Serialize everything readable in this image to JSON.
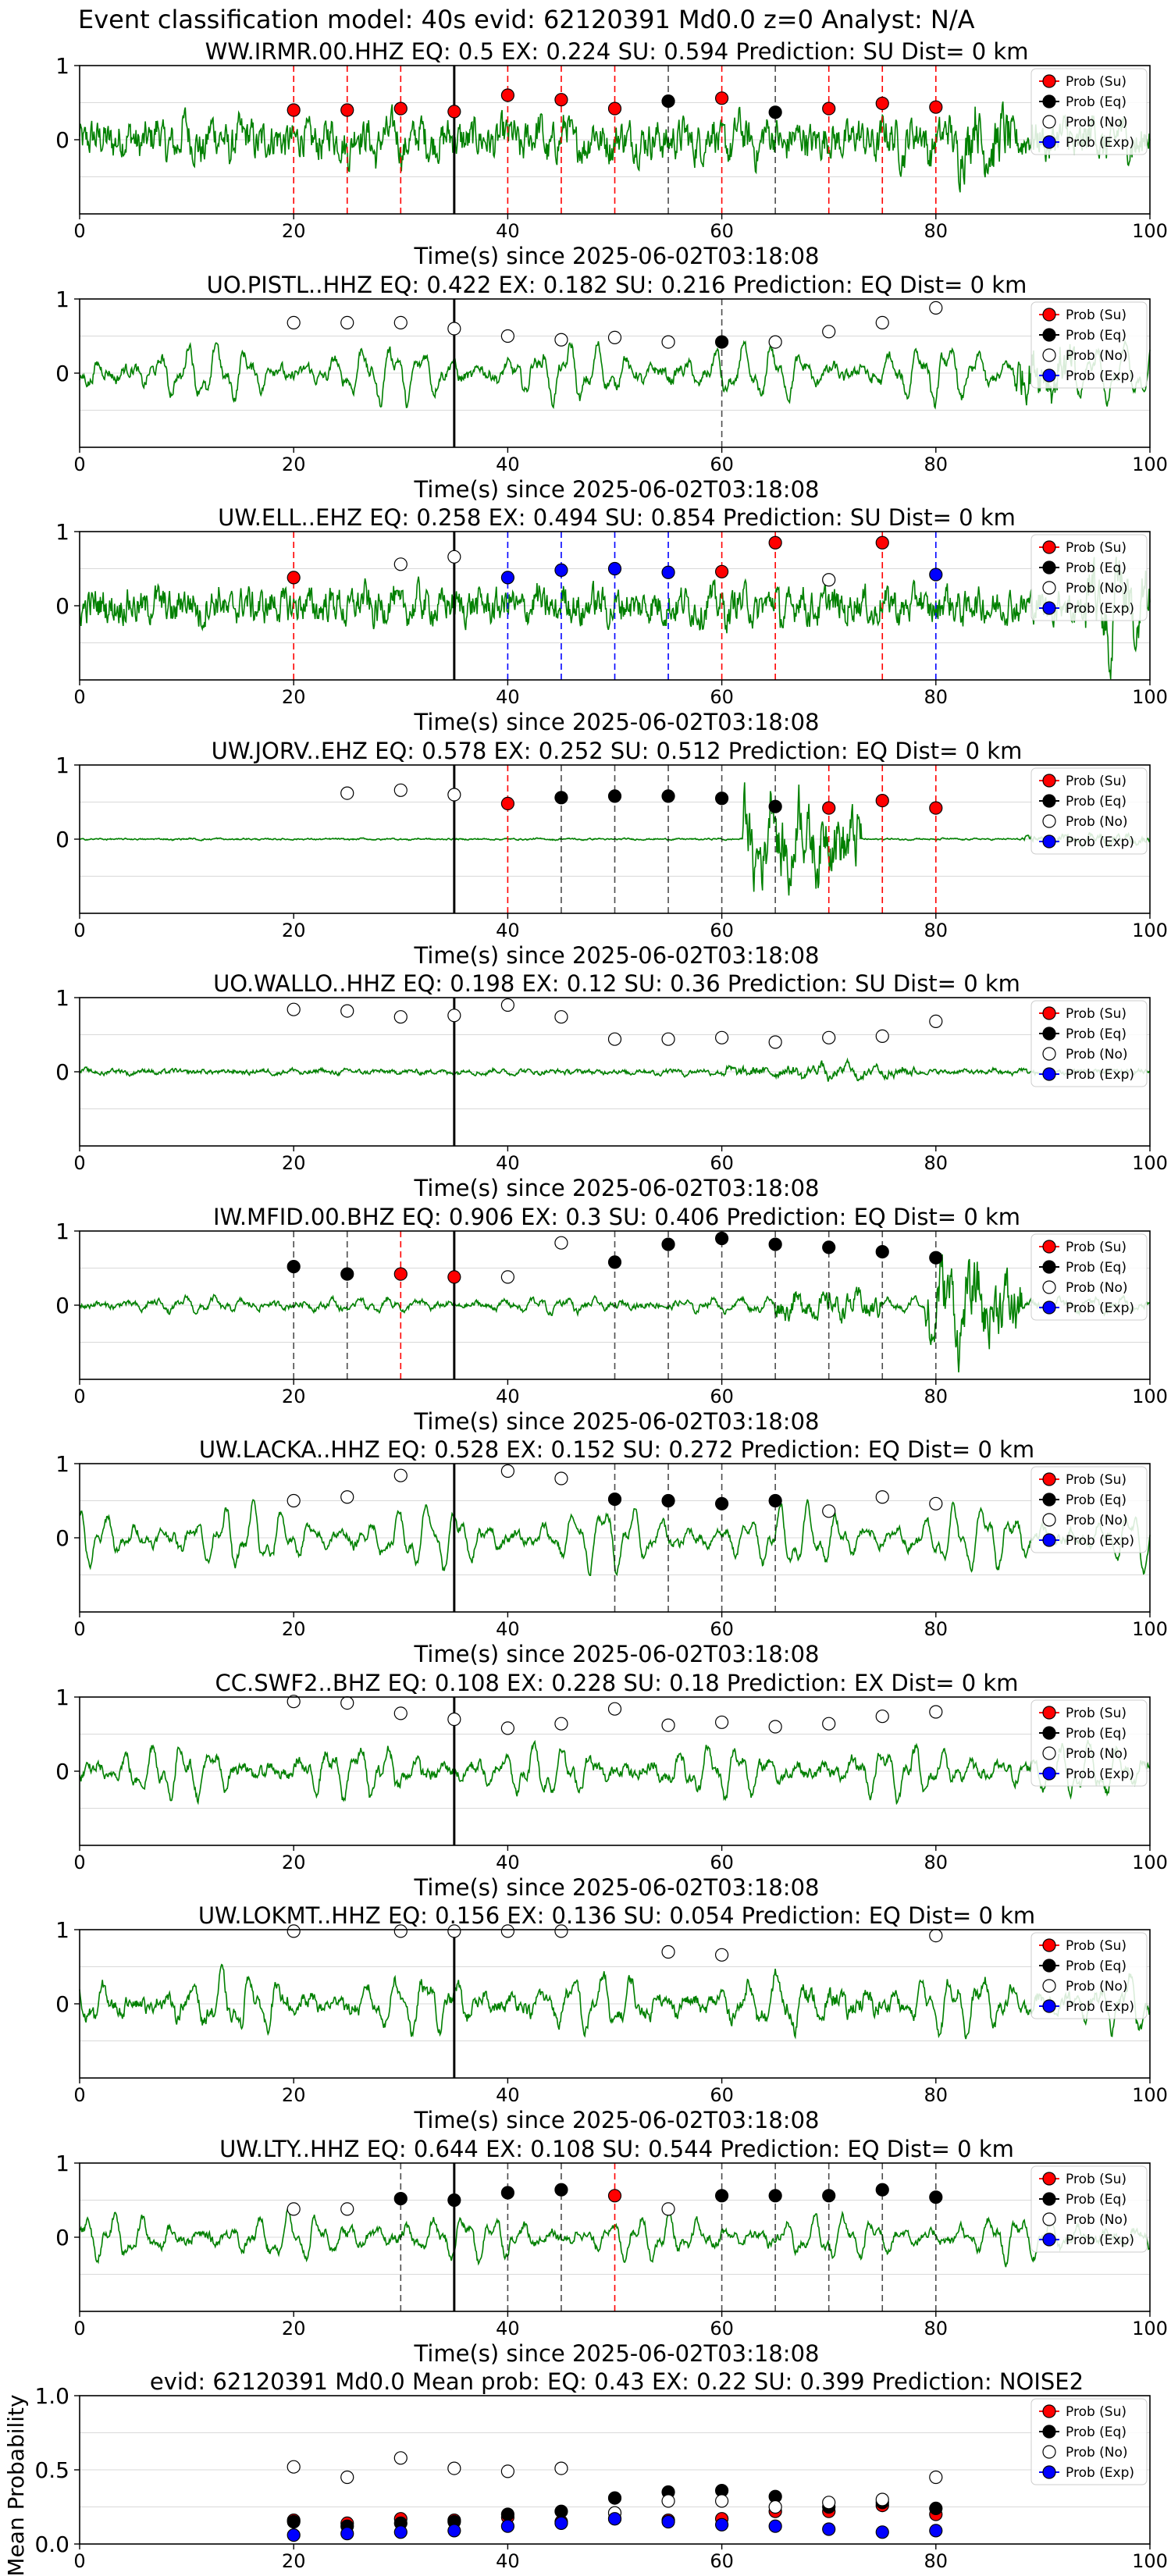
{
  "figure_title": "Event classification model: 40s evid: 62120391 Md0.0 z=0 Analyst: N/A",
  "legend": {
    "su": "Prob (Su)",
    "eq": "Prob (Eq)",
    "no": "Prob (No)",
    "exp": "Prob (Exp)"
  },
  "colors": {
    "waveform": "#008000",
    "su": "#ff0000",
    "eq": "#000000",
    "no": "#ffffff",
    "exp": "#0000ff",
    "grid": "#d9d9d9"
  },
  "chart_data": [
    {
      "type": "line",
      "title": "WW.IRMR.00.HHZ   EQ: 0.5   EX: 0.224   SU: 0.594   Prediction: SU    Dist= 0 km",
      "xlabel": "Time(s) since 2025-06-02T03:18:08",
      "xlim": [
        0,
        100
      ],
      "ylim": [
        -1,
        1
      ],
      "xticks": [
        "0",
        "20",
        "40",
        "60",
        "80",
        "100"
      ],
      "yticks": [
        "1",
        "0"
      ],
      "signal": {
        "amp": 0.22,
        "noise": 0.5,
        "bursts": [
          [
            82,
            87,
            0.95
          ]
        ]
      },
      "windows": [
        {
          "t": 20,
          "class": "su",
          "p": 0.4
        },
        {
          "t": 25,
          "class": "su",
          "p": 0.4
        },
        {
          "t": 30,
          "class": "su",
          "p": 0.42
        },
        {
          "t": 35,
          "class": "su",
          "p": 0.38
        },
        {
          "t": 40,
          "class": "su",
          "p": 0.6
        },
        {
          "t": 45,
          "class": "su",
          "p": 0.54
        },
        {
          "t": 50,
          "class": "su",
          "p": 0.42
        },
        {
          "t": 55,
          "class": "eq",
          "p": 0.52
        },
        {
          "t": 60,
          "class": "su",
          "p": 0.56
        },
        {
          "t": 65,
          "class": "eq",
          "p": 0.37
        },
        {
          "t": 70,
          "class": "su",
          "p": 0.42
        },
        {
          "t": 75,
          "class": "su",
          "p": 0.49
        },
        {
          "t": 80,
          "class": "su",
          "p": 0.44
        }
      ]
    },
    {
      "type": "line",
      "title": "UO.PISTL..HHZ   EQ: 0.422  EX: 0.182  SU: 0.216   Prediction: EQ    Dist= 0 km",
      "xlabel": "Time(s) since 2025-06-02T03:18:08",
      "xlim": [
        0,
        100
      ],
      "ylim": [
        -1,
        1
      ],
      "xticks": [
        "0",
        "20",
        "40",
        "60",
        "80",
        "100"
      ],
      "yticks": [
        "1",
        "0"
      ],
      "signal": {
        "amp": 0.45,
        "noise": 0.15,
        "bursts": [
          [
            87,
            93,
            0.7
          ]
        ]
      },
      "windows": [
        {
          "t": 20,
          "class": "no",
          "p": 0.68
        },
        {
          "t": 25,
          "class": "no",
          "p": 0.68
        },
        {
          "t": 30,
          "class": "no",
          "p": 0.68
        },
        {
          "t": 35,
          "class": "no",
          "p": 0.6
        },
        {
          "t": 40,
          "class": "no",
          "p": 0.5
        },
        {
          "t": 45,
          "class": "no",
          "p": 0.45
        },
        {
          "t": 50,
          "class": "no",
          "p": 0.48
        },
        {
          "t": 55,
          "class": "no",
          "p": 0.42
        },
        {
          "t": 60,
          "class": "eq",
          "p": 0.42
        },
        {
          "t": 65,
          "class": "no",
          "p": 0.42
        },
        {
          "t": 70,
          "class": "no",
          "p": 0.56
        },
        {
          "t": 75,
          "class": "no",
          "p": 0.68
        },
        {
          "t": 80,
          "class": "no",
          "p": 0.88
        }
      ]
    },
    {
      "type": "line",
      "title": "UW.ELL..EHZ   EQ: 0.258  EX: 0.494  SU: 0.854   Prediction: SU    Dist= 0 km",
      "xlabel": "Time(s) since 2025-06-02T03:18:08",
      "xlim": [
        0,
        100
      ],
      "ylim": [
        -1,
        1
      ],
      "xticks": [
        "0",
        "20",
        "40",
        "60",
        "80",
        "100"
      ],
      "yticks": [
        "1",
        "0"
      ],
      "signal": {
        "amp": 0.15,
        "noise": 0.45,
        "bursts": [
          [
            65,
            75,
            0.5
          ],
          [
            94,
            100,
            0.9
          ]
        ]
      },
      "windows": [
        {
          "t": 20,
          "class": "su",
          "p": 0.38
        },
        {
          "t": 30,
          "class": "no",
          "p": 0.56
        },
        {
          "t": 35,
          "class": "no",
          "p": 0.66
        },
        {
          "t": 40,
          "class": "exp",
          "p": 0.38
        },
        {
          "t": 45,
          "class": "exp",
          "p": 0.48
        },
        {
          "t": 50,
          "class": "exp",
          "p": 0.5
        },
        {
          "t": 55,
          "class": "exp",
          "p": 0.45
        },
        {
          "t": 60,
          "class": "su",
          "p": 0.46
        },
        {
          "t": 65,
          "class": "su",
          "p": 0.85
        },
        {
          "t": 70,
          "class": "no",
          "p": 0.35
        },
        {
          "t": 75,
          "class": "su",
          "p": 0.85
        },
        {
          "t": 80,
          "class": "exp",
          "p": 0.42
        }
      ]
    },
    {
      "type": "line",
      "title": "UW.JORV..EHZ   EQ: 0.578  EX: 0.252  SU: 0.512   Prediction: EQ    Dist= 0 km",
      "xlabel": "Time(s) since 2025-06-02T03:18:08",
      "xlim": [
        0,
        100
      ],
      "ylim": [
        -1,
        1
      ],
      "xticks": [
        "0",
        "20",
        "40",
        "60",
        "80",
        "100"
      ],
      "yticks": [
        "1",
        "0"
      ],
      "signal": {
        "amp": 0.01,
        "noise": 0.02,
        "bursts": [
          [
            62,
            73,
            1.0
          ],
          [
            88,
            100,
            0.1
          ]
        ]
      },
      "windows": [
        {
          "t": 25,
          "class": "no",
          "p": 0.62
        },
        {
          "t": 30,
          "class": "no",
          "p": 0.66
        },
        {
          "t": 35,
          "class": "no",
          "p": 0.6
        },
        {
          "t": 40,
          "class": "su",
          "p": 0.48
        },
        {
          "t": 45,
          "class": "eq",
          "p": 0.56
        },
        {
          "t": 50,
          "class": "eq",
          "p": 0.58
        },
        {
          "t": 55,
          "class": "eq",
          "p": 0.58
        },
        {
          "t": 60,
          "class": "eq",
          "p": 0.55
        },
        {
          "t": 65,
          "class": "eq",
          "p": 0.44
        },
        {
          "t": 70,
          "class": "su",
          "p": 0.42
        },
        {
          "t": 75,
          "class": "su",
          "p": 0.52
        },
        {
          "t": 80,
          "class": "su",
          "p": 0.42
        }
      ]
    },
    {
      "type": "line",
      "title": "UO.WALLO..HHZ   EQ: 0.198  EX: 0.12  SU: 0.36   Prediction: SU    Dist= 0 km",
      "xlabel": "Time(s) since 2025-06-02T03:18:08",
      "xlim": [
        0,
        100
      ],
      "ylim": [
        -1,
        1
      ],
      "xticks": [
        "0",
        "20",
        "40",
        "60",
        "80",
        "100"
      ],
      "yticks": [
        "1",
        "0"
      ],
      "signal": {
        "amp": 0.04,
        "noise": 0.06,
        "bursts": [
          [
            60,
            78,
            0.15
          ]
        ]
      },
      "windows": [
        {
          "t": 20,
          "class": "no",
          "p": 0.84
        },
        {
          "t": 25,
          "class": "no",
          "p": 0.82
        },
        {
          "t": 30,
          "class": "no",
          "p": 0.74
        },
        {
          "t": 35,
          "class": "no",
          "p": 0.76
        },
        {
          "t": 40,
          "class": "no",
          "p": 0.9
        },
        {
          "t": 45,
          "class": "no",
          "p": 0.74
        },
        {
          "t": 50,
          "class": "no",
          "p": 0.44
        },
        {
          "t": 55,
          "class": "no",
          "p": 0.44
        },
        {
          "t": 60,
          "class": "no",
          "p": 0.46
        },
        {
          "t": 65,
          "class": "no",
          "p": 0.4
        },
        {
          "t": 70,
          "class": "no",
          "p": 0.46
        },
        {
          "t": 75,
          "class": "no",
          "p": 0.48
        },
        {
          "t": 80,
          "class": "no",
          "p": 0.68
        }
      ]
    },
    {
      "type": "line",
      "title": "IW.MFID.00.BHZ   EQ: 0.906  EX: 0.3  SU: 0.406   Prediction: EQ    Dist= 0 km",
      "xlabel": "Time(s) since 2025-06-02T03:18:08",
      "xlim": [
        0,
        100
      ],
      "ylim": [
        -1,
        1
      ],
      "xticks": [
        "0",
        "20",
        "40",
        "60",
        "80",
        "100"
      ],
      "yticks": [
        "1",
        "0"
      ],
      "signal": {
        "amp": 0.12,
        "noise": 0.08,
        "bursts": [
          [
            65,
            75,
            0.35
          ],
          [
            79,
            88,
            0.95
          ]
        ]
      },
      "windows": [
        {
          "t": 20,
          "class": "eq",
          "p": 0.52
        },
        {
          "t": 25,
          "class": "eq",
          "p": 0.42
        },
        {
          "t": 30,
          "class": "su",
          "p": 0.42
        },
        {
          "t": 35,
          "class": "su",
          "p": 0.38
        },
        {
          "t": 40,
          "class": "no",
          "p": 0.38
        },
        {
          "t": 45,
          "class": "no",
          "p": 0.84
        },
        {
          "t": 50,
          "class": "eq",
          "p": 0.58
        },
        {
          "t": 55,
          "class": "eq",
          "p": 0.82
        },
        {
          "t": 60,
          "class": "eq",
          "p": 0.9
        },
        {
          "t": 65,
          "class": "eq",
          "p": 0.82
        },
        {
          "t": 70,
          "class": "eq",
          "p": 0.78
        },
        {
          "t": 75,
          "class": "eq",
          "p": 0.72
        },
        {
          "t": 80,
          "class": "eq",
          "p": 0.64
        }
      ]
    },
    {
      "type": "line",
      "title": "UW.LACKA..HHZ   EQ: 0.528  EX: 0.152  SU: 0.272   Prediction: EQ    Dist= 0 km",
      "xlabel": "Time(s) since 2025-06-02T03:18:08",
      "xlim": [
        0,
        100
      ],
      "ylim": [
        -1,
        1
      ],
      "xticks": [
        "0",
        "20",
        "40",
        "60",
        "80",
        "100"
      ],
      "yticks": [
        "1",
        "0"
      ],
      "signal": {
        "amp": 0.5,
        "noise": 0.12,
        "bursts": []
      },
      "windows": [
        {
          "t": 20,
          "class": "no",
          "p": 0.5
        },
        {
          "t": 25,
          "class": "no",
          "p": 0.55
        },
        {
          "t": 30,
          "class": "no",
          "p": 0.84
        },
        {
          "t": 40,
          "class": "no",
          "p": 0.9
        },
        {
          "t": 45,
          "class": "no",
          "p": 0.8
        },
        {
          "t": 50,
          "class": "eq",
          "p": 0.52
        },
        {
          "t": 55,
          "class": "eq",
          "p": 0.5
        },
        {
          "t": 60,
          "class": "eq",
          "p": 0.46
        },
        {
          "t": 65,
          "class": "eq",
          "p": 0.5
        },
        {
          "t": 70,
          "class": "no",
          "p": 0.36
        },
        {
          "t": 75,
          "class": "no",
          "p": 0.55
        },
        {
          "t": 80,
          "class": "no",
          "p": 0.46
        }
      ]
    },
    {
      "type": "line",
      "title": "CC.SWF2..BHZ   EQ: 0.108  EX: 0.228  SU: 0.18   Prediction: EX    Dist= 0 km",
      "xlabel": "Time(s) since 2025-06-02T03:18:08",
      "xlim": [
        0,
        100
      ],
      "ylim": [
        -1,
        1
      ],
      "xticks": [
        "0",
        "20",
        "40",
        "60",
        "80",
        "100"
      ],
      "yticks": [
        "1",
        "0"
      ],
      "signal": {
        "amp": 0.42,
        "noise": 0.15,
        "bursts": []
      },
      "windows": [
        {
          "t": 20,
          "class": "no",
          "p": 0.94
        },
        {
          "t": 25,
          "class": "no",
          "p": 0.92
        },
        {
          "t": 30,
          "class": "no",
          "p": 0.78
        },
        {
          "t": 35,
          "class": "no",
          "p": 0.7
        },
        {
          "t": 40,
          "class": "no",
          "p": 0.58
        },
        {
          "t": 45,
          "class": "no",
          "p": 0.64
        },
        {
          "t": 50,
          "class": "no",
          "p": 0.84
        },
        {
          "t": 55,
          "class": "no",
          "p": 0.62
        },
        {
          "t": 60,
          "class": "no",
          "p": 0.66
        },
        {
          "t": 65,
          "class": "no",
          "p": 0.6
        },
        {
          "t": 70,
          "class": "no",
          "p": 0.64
        },
        {
          "t": 75,
          "class": "no",
          "p": 0.74
        },
        {
          "t": 80,
          "class": "no",
          "p": 0.8
        }
      ]
    },
    {
      "type": "line",
      "title": "UW.LOKMT..HHZ   EQ: 0.156  EX: 0.136  SU: 0.054   Prediction: EQ    Dist= 0 km",
      "xlabel": "Time(s) since 2025-06-02T03:18:08",
      "xlim": [
        0,
        100
      ],
      "ylim": [
        -1,
        1
      ],
      "xticks": [
        "0",
        "20",
        "40",
        "60",
        "80",
        "100"
      ],
      "yticks": [
        "1",
        "0"
      ],
      "signal": {
        "amp": 0.45,
        "noise": 0.18,
        "bursts": [
          [
            65,
            75,
            0.3
          ]
        ]
      },
      "windows": [
        {
          "t": 20,
          "class": "no",
          "p": 0.98
        },
        {
          "t": 30,
          "class": "no",
          "p": 0.98
        },
        {
          "t": 35,
          "class": "no",
          "p": 0.98
        },
        {
          "t": 40,
          "class": "no",
          "p": 0.98
        },
        {
          "t": 45,
          "class": "no",
          "p": 0.98
        },
        {
          "t": 55,
          "class": "no",
          "p": 0.7
        },
        {
          "t": 60,
          "class": "no",
          "p": 0.66
        },
        {
          "t": 80,
          "class": "no",
          "p": 0.92
        }
      ]
    },
    {
      "type": "line",
      "title": "UW.LTY..HHZ   EQ: 0.644  EX: 0.108  SU: 0.544   Prediction: EQ    Dist= 0 km",
      "xlabel": "Time(s) since 2025-06-02T03:18:08",
      "xlim": [
        0,
        100
      ],
      "ylim": [
        -1,
        1
      ],
      "xticks": [
        "0",
        "20",
        "40",
        "60",
        "80",
        "100"
      ],
      "yticks": [
        "1",
        "0"
      ],
      "signal": {
        "amp": 0.35,
        "noise": 0.12,
        "bursts": []
      },
      "windows": [
        {
          "t": 20,
          "class": "no",
          "p": 0.38
        },
        {
          "t": 25,
          "class": "no",
          "p": 0.38
        },
        {
          "t": 30,
          "class": "eq",
          "p": 0.52
        },
        {
          "t": 35,
          "class": "eq",
          "p": 0.5
        },
        {
          "t": 40,
          "class": "eq",
          "p": 0.6
        },
        {
          "t": 45,
          "class": "eq",
          "p": 0.64
        },
        {
          "t": 50,
          "class": "su",
          "p": 0.56
        },
        {
          "t": 55,
          "class": "no",
          "p": 0.38
        },
        {
          "t": 60,
          "class": "eq",
          "p": 0.56
        },
        {
          "t": 65,
          "class": "eq",
          "p": 0.56
        },
        {
          "t": 70,
          "class": "eq",
          "p": 0.56
        },
        {
          "t": 75,
          "class": "eq",
          "p": 0.64
        },
        {
          "t": 80,
          "class": "eq",
          "p": 0.54
        }
      ]
    },
    {
      "type": "scatter",
      "title": "evid: 62120391   Md0.0   Mean prob:   EQ: 0.43  EX: 0.22  SU: 0.399   Prediction: NOISE2",
      "ylabel": "Mean Probability",
      "xlim": [
        0,
        100
      ],
      "ylim": [
        0,
        1
      ],
      "xticks": [
        "0",
        "20",
        "40",
        "60",
        "80",
        "100"
      ],
      "yticks": [
        "1.0",
        "0.5",
        "0.0"
      ],
      "x": [
        20,
        25,
        30,
        35,
        40,
        45,
        50,
        55,
        60,
        65,
        70,
        75,
        80
      ],
      "series": [
        {
          "name": "Prob (Su)",
          "class": "su",
          "values": [
            0.16,
            0.14,
            0.17,
            0.16,
            0.18,
            0.15,
            0.17,
            0.16,
            0.17,
            0.22,
            0.22,
            0.26,
            0.2
          ]
        },
        {
          "name": "Prob (Eq)",
          "class": "eq",
          "values": [
            0.15,
            0.12,
            0.14,
            0.15,
            0.2,
            0.22,
            0.31,
            0.35,
            0.36,
            0.32,
            0.25,
            0.28,
            0.24
          ]
        },
        {
          "name": "Prob (No)",
          "class": "no",
          "values": [
            0.52,
            0.45,
            0.58,
            0.51,
            0.49,
            0.51,
            0.21,
            0.29,
            0.29,
            0.25,
            0.28,
            0.3,
            0.45
          ]
        },
        {
          "name": "Prob (Exp)",
          "class": "exp",
          "values": [
            0.06,
            0.07,
            0.08,
            0.09,
            0.12,
            0.14,
            0.17,
            0.15,
            0.13,
            0.12,
            0.1,
            0.08,
            0.09
          ]
        }
      ]
    }
  ]
}
